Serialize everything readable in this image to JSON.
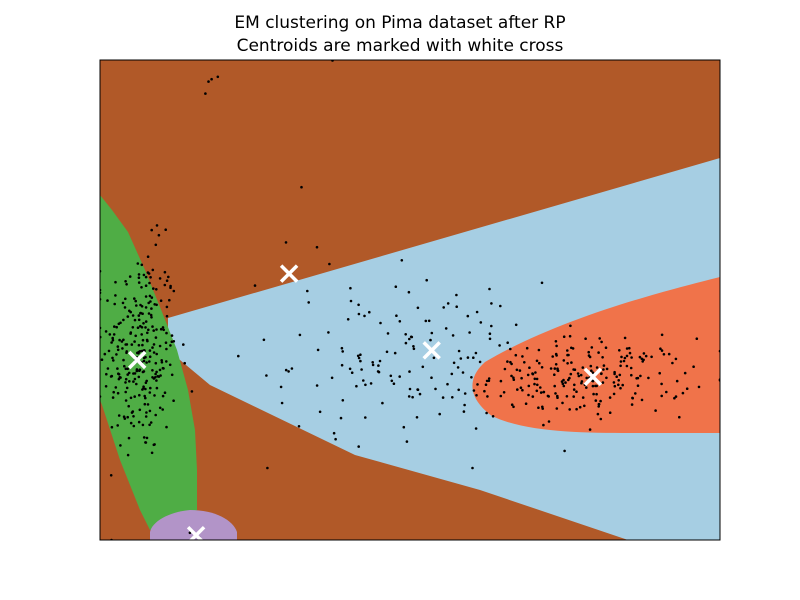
{
  "chart_data": {
    "type": "scatter",
    "title_lines": [
      "EM clustering on Pima dataset after RP",
      "Centroids are marked with white cross"
    ],
    "xlabel": "",
    "ylabel": "",
    "xlim": [
      0,
      1
    ],
    "ylim": [
      0,
      1
    ],
    "axis_ticks": "none",
    "grid": false,
    "region_colors": {
      "background": "#b15928",
      "green": "#4fad45",
      "light_blue": "#a6cee3",
      "orange": "#f0734a",
      "purple": "#b294c8"
    },
    "centroid_marker": "white-cross",
    "point_color": "#000000",
    "centroids": [
      {
        "x": 0.06,
        "y": 0.375
      },
      {
        "x": 0.305,
        "y": 0.555
      },
      {
        "x": 0.535,
        "y": 0.395
      },
      {
        "x": 0.795,
        "y": 0.34
      },
      {
        "x": 0.155,
        "y": 0.01
      }
    ],
    "point_clusters": [
      {
        "cx": 0.065,
        "cy": 0.39,
        "sx": 0.03,
        "sy": 0.11,
        "n": 280
      },
      {
        "cx": 0.5,
        "cy": 0.38,
        "sx": 0.11,
        "sy": 0.08,
        "n": 140
      },
      {
        "cx": 0.79,
        "cy": 0.34,
        "sx": 0.08,
        "sy": 0.04,
        "n": 220
      }
    ],
    "outlier_points": [
      {
        "x": 0.175,
        "y": 0.955
      },
      {
        "x": 0.17,
        "y": 0.93
      },
      {
        "x": 0.19,
        "y": 0.965
      },
      {
        "x": 0.18,
        "y": 0.96
      },
      {
        "x": 0.375,
        "y": 0.999
      },
      {
        "x": 0.325,
        "y": 0.735
      },
      {
        "x": 0.3,
        "y": 0.62
      },
      {
        "x": 0.35,
        "y": 0.61
      },
      {
        "x": 0.37,
        "y": 0.575
      },
      {
        "x": 0.09,
        "y": 0.615
      },
      {
        "x": 0.095,
        "y": 0.635
      },
      {
        "x": 0.27,
        "y": 0.15
      },
      {
        "x": 0.25,
        "y": 0.53
      },
      {
        "x": 0.38,
        "y": 0.21
      },
      {
        "x": 0.495,
        "y": 0.205
      },
      {
        "x": 0.145,
        "y": 0.015
      },
      {
        "x": 0.16,
        "y": 0.005
      },
      {
        "x": 0.0,
        "y": 0.56
      },
      {
        "x": 0.49,
        "y": 0.235
      },
      {
        "x": 0.62,
        "y": 0.31
      }
    ]
  }
}
